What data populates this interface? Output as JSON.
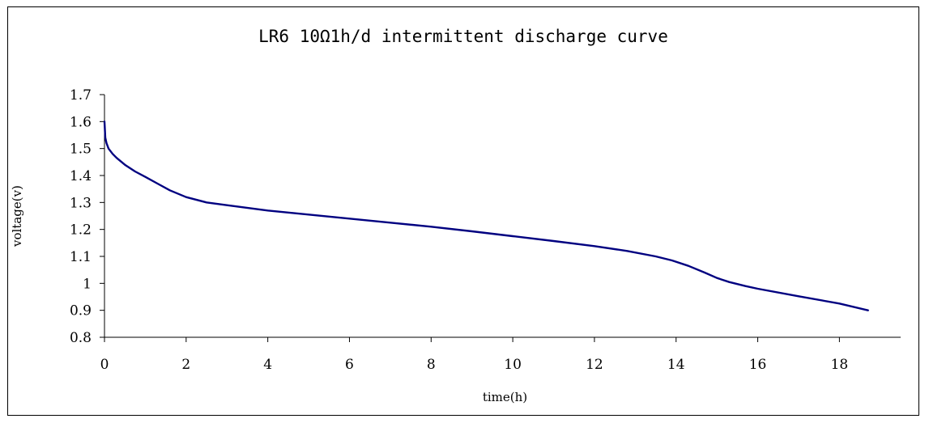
{
  "chart_data": {
    "type": "line",
    "title": "LR6 10Ω1h/d intermittent discharge curve",
    "xlabel": "time(h)",
    "ylabel": "voltage(v)",
    "xlim": [
      0,
      19.5
    ],
    "ylim": [
      0.8,
      1.7
    ],
    "x_ticks": [
      0,
      2,
      4,
      6,
      8,
      10,
      12,
      14,
      16,
      18
    ],
    "y_ticks": [
      0.8,
      0.9,
      1,
      1.1,
      1.2,
      1.3,
      1.4,
      1.5,
      1.6,
      1.7
    ],
    "y_tick_labels": [
      "0.8",
      "0.9",
      "1",
      "1.1",
      "1.2",
      "1.3",
      "1.4",
      "1.5",
      "1.6",
      "1.7"
    ],
    "grid": false,
    "series": [
      {
        "color": "#000080",
        "x": [
          0,
          0.02,
          0.05,
          0.1,
          0.2,
          0.3,
          0.5,
          0.75,
          1.0,
          1.3,
          1.6,
          2.0,
          2.5,
          3,
          4,
          5,
          6,
          7,
          8,
          9,
          10,
          11,
          12,
          12.8,
          13.5,
          13.9,
          14.3,
          14.7,
          15.0,
          15.3,
          15.7,
          16,
          17,
          18,
          18.7
        ],
        "y": [
          1.6,
          1.54,
          1.52,
          1.5,
          1.48,
          1.465,
          1.44,
          1.415,
          1.395,
          1.37,
          1.345,
          1.32,
          1.3,
          1.29,
          1.27,
          1.255,
          1.24,
          1.225,
          1.21,
          1.193,
          1.175,
          1.157,
          1.138,
          1.12,
          1.1,
          1.085,
          1.065,
          1.04,
          1.02,
          1.005,
          0.99,
          0.98,
          0.952,
          0.925,
          0.9
        ]
      }
    ]
  }
}
